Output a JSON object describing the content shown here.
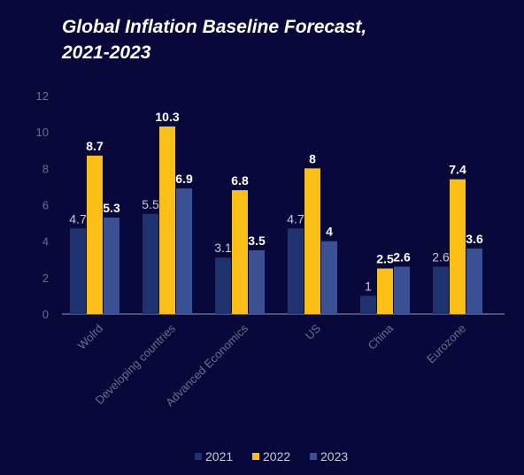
{
  "chart_data": {
    "type": "bar",
    "title_line1": "Global Inflation Baseline Forecast,",
    "title_line2": "2021-2023",
    "xlabel": "",
    "ylabel": "",
    "ylim": [
      0,
      12
    ],
    "yticks": [
      0,
      2,
      4,
      6,
      8,
      10,
      12
    ],
    "grid": false,
    "legend_position": "bottom",
    "categories": [
      "Wolrd",
      "Developing countries",
      "Advanced Economics",
      "US",
      "China",
      "Eurozone"
    ],
    "series": [
      {
        "name": "2021",
        "color": "#1e3370",
        "label_color": "#c8c8d2",
        "values": [
          4.7,
          5.5,
          3.1,
          4.7,
          1,
          2.6
        ]
      },
      {
        "name": "2022",
        "color": "#fbbf17",
        "label_color": "#ffffff",
        "values": [
          8.7,
          10.3,
          6.8,
          8,
          2.5,
          7.4
        ]
      },
      {
        "name": "2023",
        "color": "#3b4f93",
        "label_color": "#ffffff",
        "values": [
          5.3,
          6.9,
          3.5,
          4,
          2.6,
          3.6
        ]
      }
    ],
    "colors": {
      "background": "#08083a",
      "axis_text": "#6b6f8a",
      "axis_line": "#9a9ab5"
    }
  }
}
